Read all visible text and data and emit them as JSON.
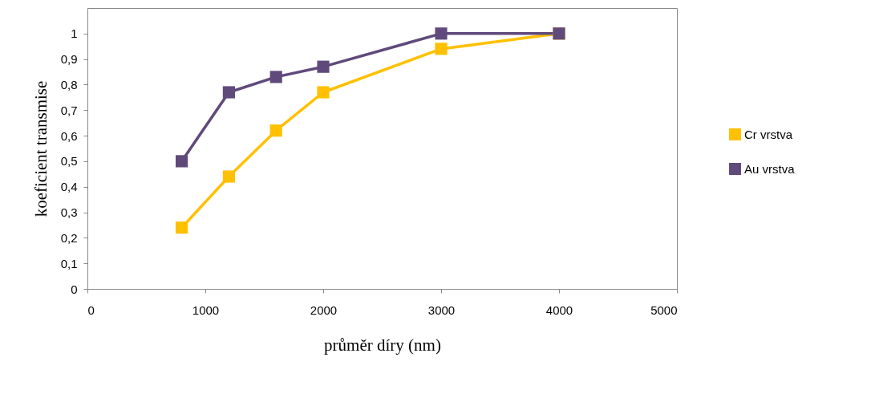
{
  "chart_data": {
    "type": "line",
    "xlabel": "průměr díry (nm)",
    "ylabel": "koeficient transmise",
    "x": [
      800,
      1200,
      1600,
      2000,
      3000,
      4000
    ],
    "series": [
      {
        "name": "Cr vrstva",
        "color": "#ffc000",
        "values": [
          0.24,
          0.44,
          0.62,
          0.77,
          0.94,
          1.0
        ]
      },
      {
        "name": "Au vrstva",
        "color": "#604a7b",
        "values": [
          0.5,
          0.77,
          0.83,
          0.87,
          1.0,
          1.0
        ]
      }
    ],
    "xlim": [
      0,
      5000
    ],
    "xticks": [
      0,
      1000,
      2000,
      3000,
      4000,
      5000
    ],
    "ylim": [
      0,
      1.1
    ],
    "yticks": [
      0,
      {
        "value": 0.1,
        "label": "0,1"
      },
      {
        "value": 0.2,
        "label": "0,2"
      },
      {
        "value": 0.3,
        "label": "0,3"
      },
      {
        "value": 0.4,
        "label": "0,4"
      },
      {
        "value": 0.5,
        "label": "0,5"
      },
      {
        "value": 0.6,
        "label": "0,6"
      },
      {
        "value": 0.7,
        "label": "0,7"
      },
      {
        "value": 0.8,
        "label": "0,8"
      },
      {
        "value": 0.9,
        "label": "0,9"
      },
      1
    ],
    "marker": "square",
    "line_style": "solid",
    "grid": false,
    "legend": "right"
  }
}
